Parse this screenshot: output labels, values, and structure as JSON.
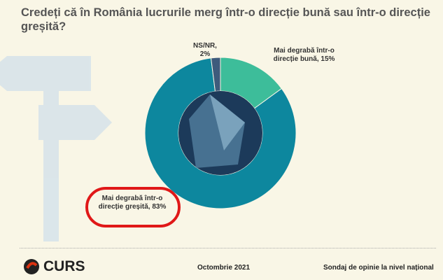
{
  "title": "Credeți că în România lucrurile merg într-o direcție bună sau într-o direcție greșită?",
  "chart_data": {
    "type": "pie",
    "donut": true,
    "title": "Credeți că în România lucrurile merg într-o direcție bună sau într-o direcție greșită?",
    "categories": [
      "Mai degrabă într-o direcție bună",
      "Mai degrabă într-o direcție greșită",
      "NS/NR"
    ],
    "values": [
      15,
      83,
      2
    ],
    "labels": [
      "Mai degrabă într-o direcție bună, 15%",
      "Mai degrabă într-o direcție greșită, 83%",
      "NS/NR, 2%"
    ],
    "colors": [
      "#3dbd9a",
      "#0d879e",
      "#3e5b7c"
    ]
  },
  "footer": {
    "logo": "CURS",
    "date": "Octombrie 2021",
    "source": "Sondaj de opinie la nivel național"
  }
}
